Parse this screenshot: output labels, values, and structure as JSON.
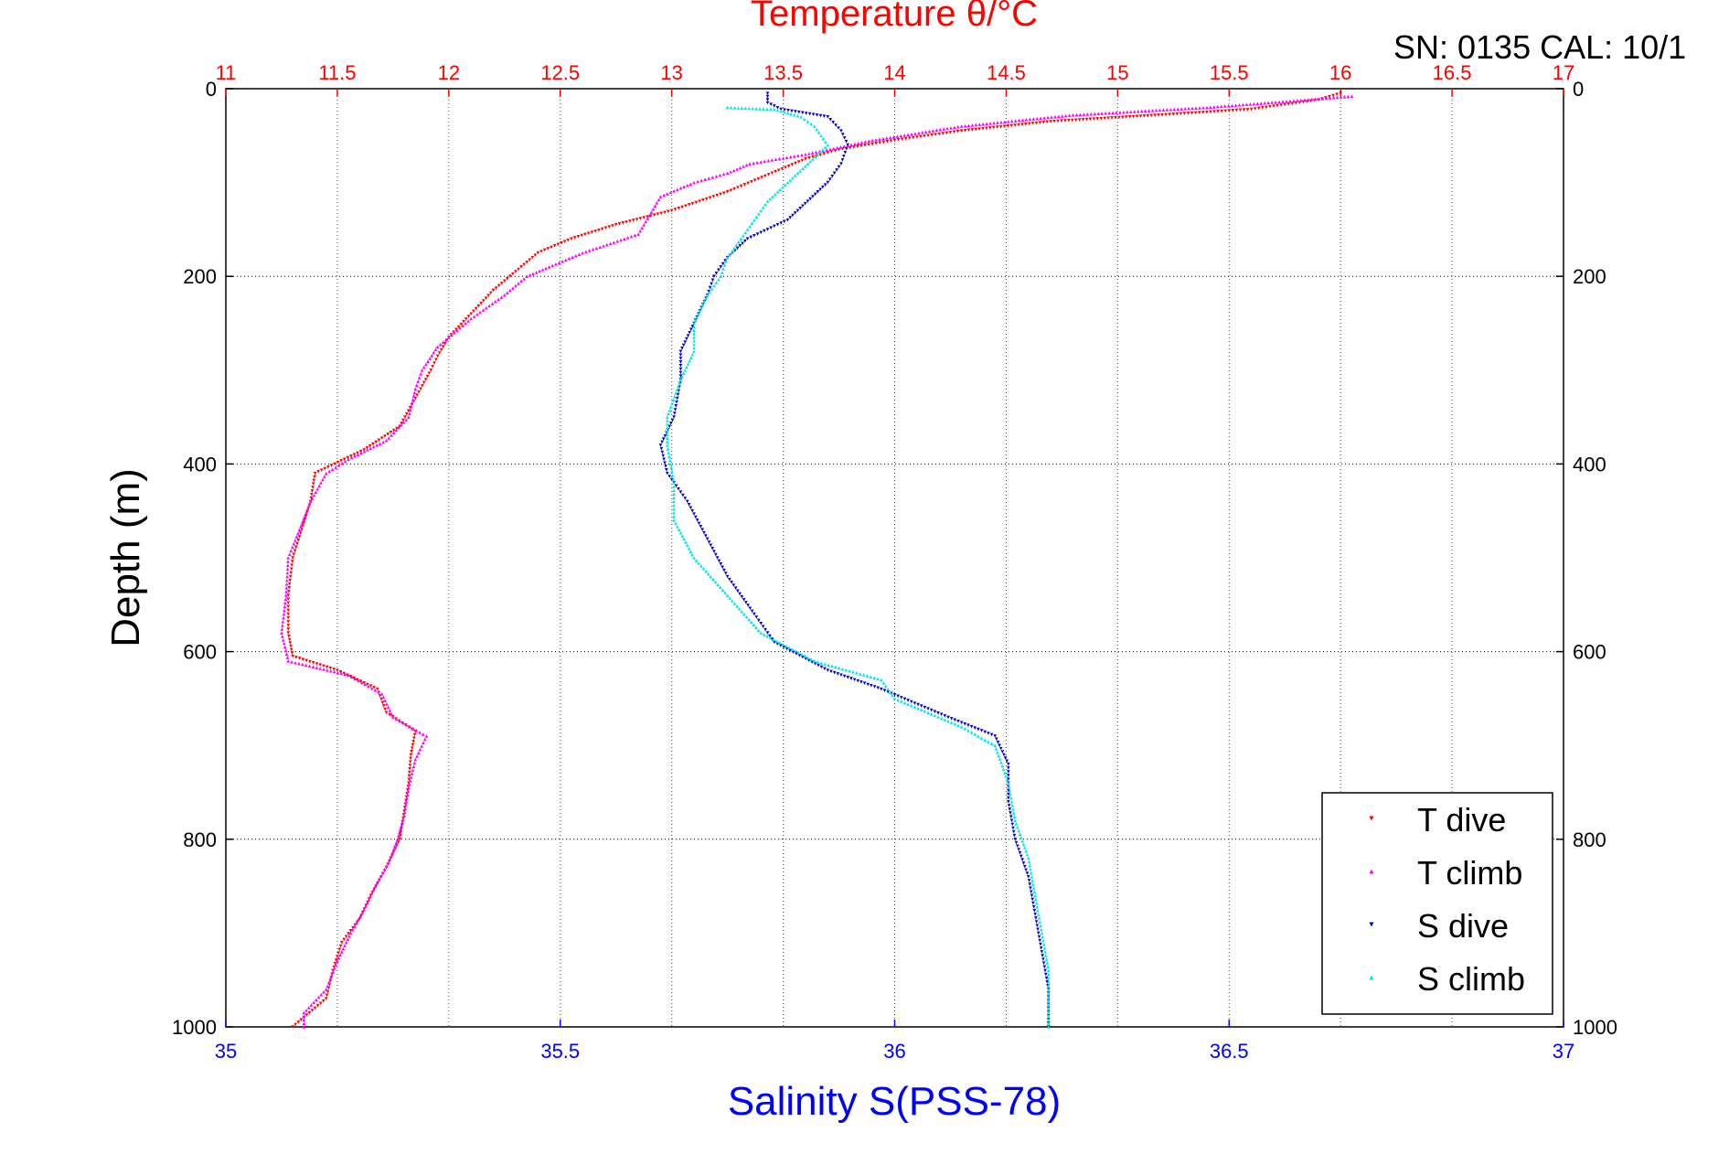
{
  "chart_data": {
    "type": "scatter",
    "title": "Temperature θ/°C",
    "header_text": "SN: 0135  CAL: 10/1",
    "xlabel": "Salinity S(PSS-78)",
    "x2label": "Temperature θ/°C",
    "ylabel": "Depth (m)",
    "y_reversed": true,
    "grid": true,
    "legend_position": "bottom-right",
    "colors": {
      "t_axis": "#ff0000",
      "s_axis": "#0000ff",
      "t_dive": "#ff0000",
      "t_climb": "#ff00ff",
      "s_dive": "#0000cc",
      "s_climb": "#00e5e5"
    },
    "axes": {
      "salinity": {
        "lim": [
          35,
          37
        ],
        "ticks": [
          35,
          35.5,
          36,
          36.5,
          37
        ],
        "tick_labels": [
          "35",
          "35.5",
          "36",
          "36.5",
          "37"
        ]
      },
      "temperature": {
        "lim": [
          11,
          17
        ],
        "ticks": [
          11,
          11.5,
          12,
          12.5,
          13,
          13.5,
          14,
          14.5,
          15,
          15.5,
          16,
          16.5,
          17
        ],
        "tick_labels": [
          "11",
          "11.5",
          "12",
          "12.5",
          "13",
          "13.5",
          "14",
          "14.5",
          "15",
          "15.5",
          "16",
          "16.5",
          "17"
        ]
      },
      "depth": {
        "lim": [
          0,
          1000
        ],
        "ticks": [
          0,
          200,
          400,
          600,
          800,
          1000
        ],
        "tick_labels": [
          "0",
          "200",
          "400",
          "600",
          "800",
          "1000"
        ]
      }
    },
    "legend": [
      "T dive",
      "T climb",
      "S dive",
      "S climb"
    ],
    "series": [
      {
        "name": "T dive",
        "variable": "temperature",
        "marker": "triangle-down",
        "color_key": "t_dive",
        "points": [
          [
            16.0,
            5
          ],
          [
            15.9,
            12
          ],
          [
            15.6,
            22
          ],
          [
            15.2,
            28
          ],
          [
            14.7,
            35
          ],
          [
            14.3,
            45
          ],
          [
            14.0,
            55
          ],
          [
            13.75,
            65
          ],
          [
            13.6,
            75
          ],
          [
            13.45,
            90
          ],
          [
            13.25,
            110
          ],
          [
            13.0,
            130
          ],
          [
            12.75,
            145
          ],
          [
            12.55,
            160
          ],
          [
            12.4,
            175
          ],
          [
            12.3,
            195
          ],
          [
            12.2,
            215
          ],
          [
            12.1,
            240
          ],
          [
            12.0,
            265
          ],
          [
            11.95,
            285
          ],
          [
            11.92,
            300
          ],
          [
            11.85,
            330
          ],
          [
            11.78,
            360
          ],
          [
            11.62,
            385
          ],
          [
            11.4,
            410
          ],
          [
            11.38,
            440
          ],
          [
            11.34,
            470
          ],
          [
            11.3,
            500
          ],
          [
            11.28,
            540
          ],
          [
            11.28,
            580
          ],
          [
            11.3,
            605
          ],
          [
            11.5,
            620
          ],
          [
            11.68,
            640
          ],
          [
            11.72,
            665
          ],
          [
            11.85,
            685
          ],
          [
            11.83,
            710
          ],
          [
            11.82,
            740
          ],
          [
            11.8,
            770
          ],
          [
            11.78,
            800
          ],
          [
            11.72,
            830
          ],
          [
            11.65,
            860
          ],
          [
            11.6,
            885
          ],
          [
            11.52,
            910
          ],
          [
            11.48,
            940
          ],
          [
            11.45,
            970
          ],
          [
            11.3,
            1000
          ]
        ]
      },
      {
        "name": "T climb",
        "variable": "temperature",
        "marker": "triangle-up",
        "color_key": "t_climb",
        "points": [
          [
            16.05,
            8
          ],
          [
            15.4,
            20
          ],
          [
            14.8,
            28
          ],
          [
            14.3,
            40
          ],
          [
            13.9,
            55
          ],
          [
            13.6,
            70
          ],
          [
            13.35,
            80
          ],
          [
            13.25,
            90
          ],
          [
            13.1,
            100
          ],
          [
            12.95,
            115
          ],
          [
            12.9,
            135
          ],
          [
            12.85,
            155
          ],
          [
            12.6,
            175
          ],
          [
            12.45,
            190
          ],
          [
            12.35,
            200
          ],
          [
            12.25,
            220
          ],
          [
            12.1,
            245
          ],
          [
            11.95,
            275
          ],
          [
            11.88,
            300
          ],
          [
            11.85,
            320
          ],
          [
            11.82,
            350
          ],
          [
            11.72,
            375
          ],
          [
            11.55,
            395
          ],
          [
            11.45,
            410
          ],
          [
            11.38,
            440
          ],
          [
            11.33,
            470
          ],
          [
            11.28,
            500
          ],
          [
            11.27,
            540
          ],
          [
            11.25,
            580
          ],
          [
            11.28,
            610
          ],
          [
            11.55,
            625
          ],
          [
            11.7,
            645
          ],
          [
            11.75,
            670
          ],
          [
            11.9,
            690
          ],
          [
            11.85,
            715
          ],
          [
            11.82,
            745
          ],
          [
            11.8,
            775
          ],
          [
            11.77,
            800
          ],
          [
            11.73,
            825
          ],
          [
            11.67,
            850
          ],
          [
            11.62,
            875
          ],
          [
            11.56,
            900
          ],
          [
            11.5,
            930
          ],
          [
            11.45,
            960
          ],
          [
            11.35,
            985
          ],
          [
            11.35,
            1000
          ]
        ]
      },
      {
        "name": "S dive",
        "variable": "salinity",
        "marker": "triangle-down",
        "color_key": "s_dive",
        "points": [
          [
            35.81,
            5
          ],
          [
            35.81,
            15
          ],
          [
            35.83,
            22
          ],
          [
            35.9,
            30
          ],
          [
            35.92,
            45
          ],
          [
            35.93,
            60
          ],
          [
            35.92,
            80
          ],
          [
            35.9,
            100
          ],
          [
            35.87,
            120
          ],
          [
            35.84,
            140
          ],
          [
            35.78,
            160
          ],
          [
            35.75,
            180
          ],
          [
            35.73,
            200
          ],
          [
            35.72,
            220
          ],
          [
            35.7,
            250
          ],
          [
            35.68,
            280
          ],
          [
            35.68,
            310
          ],
          [
            35.67,
            350
          ],
          [
            35.65,
            380
          ],
          [
            35.66,
            410
          ],
          [
            35.69,
            440
          ],
          [
            35.72,
            480
          ],
          [
            35.75,
            520
          ],
          [
            35.79,
            560
          ],
          [
            35.82,
            590
          ],
          [
            35.9,
            620
          ],
          [
            35.98,
            640
          ],
          [
            36.08,
            670
          ],
          [
            36.15,
            690
          ],
          [
            36.17,
            720
          ],
          [
            36.17,
            760
          ],
          [
            36.18,
            800
          ],
          [
            36.2,
            840
          ],
          [
            36.21,
            880
          ],
          [
            36.22,
            920
          ],
          [
            36.23,
            960
          ],
          [
            36.23,
            1000
          ]
        ]
      },
      {
        "name": "S climb",
        "variable": "salinity",
        "marker": "triangle-up",
        "color_key": "s_climb",
        "points": [
          [
            35.75,
            20
          ],
          [
            35.82,
            22
          ],
          [
            35.86,
            30
          ],
          [
            35.88,
            40
          ],
          [
            35.9,
            60
          ],
          [
            35.87,
            80
          ],
          [
            35.84,
            100
          ],
          [
            35.81,
            120
          ],
          [
            35.79,
            140
          ],
          [
            35.77,
            160
          ],
          [
            35.75,
            180
          ],
          [
            35.74,
            200
          ],
          [
            35.72,
            220
          ],
          [
            35.7,
            250
          ],
          [
            35.7,
            280
          ],
          [
            35.68,
            310
          ],
          [
            35.66,
            350
          ],
          [
            35.66,
            380
          ],
          [
            35.67,
            420
          ],
          [
            35.67,
            460
          ],
          [
            35.7,
            500
          ],
          [
            35.75,
            540
          ],
          [
            35.8,
            580
          ],
          [
            35.88,
            610
          ],
          [
            35.98,
            630
          ],
          [
            36.0,
            650
          ],
          [
            36.1,
            680
          ],
          [
            36.15,
            700
          ],
          [
            36.17,
            740
          ],
          [
            36.18,
            780
          ],
          [
            36.2,
            820
          ],
          [
            36.21,
            860
          ],
          [
            36.22,
            900
          ],
          [
            36.23,
            940
          ],
          [
            36.23,
            980
          ],
          [
            36.23,
            1000
          ]
        ]
      }
    ]
  }
}
